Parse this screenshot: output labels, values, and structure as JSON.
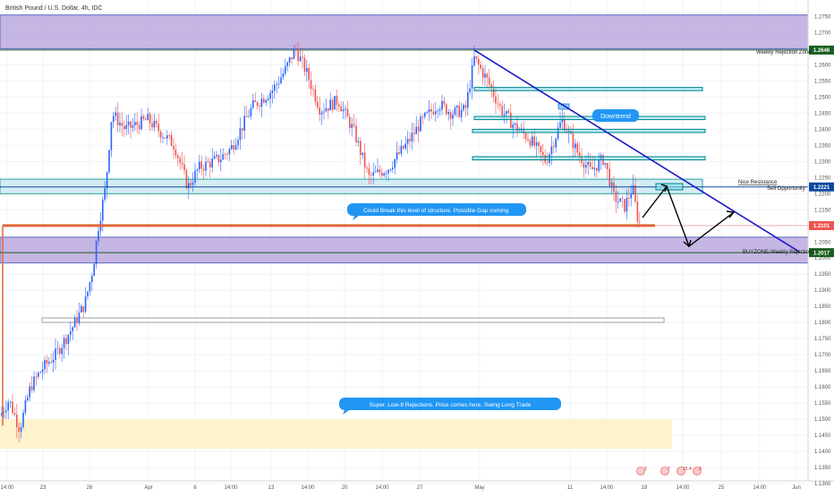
{
  "header": {
    "symbol_title": "British Pound / U.S. Dollar, 4h, IDC"
  },
  "chart_data": {
    "type": "candlestick",
    "title": "British Pound / U.S. Dollar, 4h, IDC",
    "ylim": [
      1.128,
      1.281
    ],
    "y_ticks": [
      1.13,
      1.135,
      1.14,
      1.145,
      1.15,
      1.155,
      1.16,
      1.165,
      1.17,
      1.175,
      1.18,
      1.185,
      1.19,
      1.195,
      1.2,
      1.205,
      1.21,
      1.215,
      1.22,
      1.225,
      1.23,
      1.235,
      1.24,
      1.245,
      1.25,
      1.255,
      1.26,
      1.265,
      1.27,
      1.275
    ],
    "x_ticks": [
      "14:00",
      "23",
      "26",
      "Apr",
      "6",
      "14:00",
      "13",
      "14:00",
      "20",
      "14:00",
      "27",
      "May",
      "11",
      "14:00",
      "18",
      "14:00",
      "25",
      "14:00",
      "Jun"
    ],
    "price_labels": [
      {
        "value": "1.2646",
        "price": 1.2646,
        "color": "#1b5e20"
      },
      {
        "value": "1.2221",
        "price": 1.2221,
        "color": "#0d47a1"
      },
      {
        "value": "1.2101",
        "price": 1.2101,
        "color": "#ef5350"
      },
      {
        "value": "1.2017",
        "price": 1.2017,
        "color": "#1b5e20"
      }
    ],
    "zones": [
      {
        "label": "Weekly Rejection Zone",
        "price_high": 1.2755,
        "price_low": 1.265
      },
      {
        "label": "BUYZONE-Weekly Rejections",
        "price_high": 1.2065,
        "price_low": 1.1985
      },
      {
        "label": "",
        "price_high": 1.15,
        "price_low": 1.1408
      }
    ],
    "annotations": [
      {
        "text": "Downtrend"
      },
      {
        "text": "Could Break this level of structure. Possible Gap coming."
      },
      {
        "text": "Super. Low-9 Rejections. Price comes here. Swing Long Trade"
      },
      {
        "text": "Nice Resistance"
      },
      {
        "text": "Sell Opportunity"
      }
    ],
    "event_badges": [
      "2",
      "7",
      "15.4",
      "3"
    ],
    "grid": true,
    "colors": {
      "up": "#2962ff",
      "down": "#ef5350",
      "zone": "#b39ddb",
      "demand": "#fff3cd",
      "trend": "#1a1ac8",
      "support": "#e0663a",
      "box": "#26a69a"
    }
  }
}
